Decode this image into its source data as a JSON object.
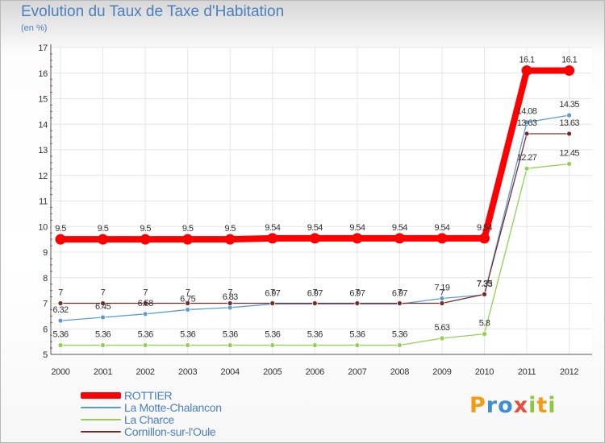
{
  "header": {
    "title": "Evolution du Taux de Taxe d'Habitation",
    "unit": "(en %)"
  },
  "logo": {
    "letters": [
      "P",
      "r",
      "o",
      "x",
      "i",
      "t",
      "i"
    ]
  },
  "chart_data": {
    "type": "line",
    "title": "Evolution du Taux de Taxe d'Habitation",
    "ylabel": "(en %)",
    "xlabel": "",
    "x": [
      "2000",
      "2001",
      "2002",
      "2003",
      "2004",
      "2005",
      "2006",
      "2007",
      "2008",
      "2009",
      "2010",
      "2011",
      "2012"
    ],
    "ylim": [
      5,
      17
    ],
    "yticks": [
      "5",
      "6",
      "7",
      "8",
      "9",
      "10",
      "11",
      "12",
      "13",
      "14",
      "15",
      "16",
      "17"
    ],
    "grid": true,
    "legend": "bottom-left",
    "series": [
      {
        "name": "ROTTIER",
        "color": "#ff0000",
        "values": [
          9.5,
          9.5,
          9.5,
          9.5,
          9.5,
          9.54,
          9.54,
          9.54,
          9.54,
          9.54,
          9.54,
          16.1,
          16.1
        ],
        "labels": [
          "9.5",
          "9.5",
          "9.5",
          "9.5",
          "9.5",
          "9.54",
          "9.54",
          "9.54",
          "9.54",
          "9.54",
          "9.54",
          "16.1",
          "16.1"
        ]
      },
      {
        "name": "La Motte-Chalancon",
        "color": "#5b9bd5",
        "values": [
          6.32,
          6.45,
          6.58,
          6.75,
          6.83,
          6.97,
          6.97,
          6.97,
          6.97,
          7.19,
          7.33,
          14.08,
          14.35
        ],
        "labels": [
          "6.32",
          "6.45",
          "6.58",
          "6.75",
          "6.83",
          "6.97",
          "6.97",
          "6.97",
          "6.97",
          "7.19",
          "7.33",
          "14.08",
          "14.35"
        ]
      },
      {
        "name": "La Charce",
        "color": "#92d050",
        "values": [
          5.36,
          5.36,
          5.36,
          5.36,
          5.36,
          5.36,
          5.36,
          5.36,
          5.36,
          5.63,
          5.8,
          12.27,
          12.45
        ],
        "labels": [
          "5.36",
          "5.36",
          "5.36",
          "5.36",
          "5.36",
          "5.36",
          "5.36",
          "5.36",
          "5.36",
          "5.63",
          "5.8",
          "12.27",
          "12.45"
        ]
      },
      {
        "name": "Cornillon-sur-l'Oule",
        "color": "#7b2a2a",
        "values": [
          7,
          7,
          7,
          7,
          7,
          7,
          7,
          7,
          7,
          7,
          7.35,
          13.63,
          13.63
        ],
        "labels": [
          "7",
          "7",
          "7",
          "7",
          "7",
          "7",
          "7",
          "7",
          "7",
          "7",
          "7.35",
          "13.63",
          "13.63"
        ]
      }
    ]
  }
}
